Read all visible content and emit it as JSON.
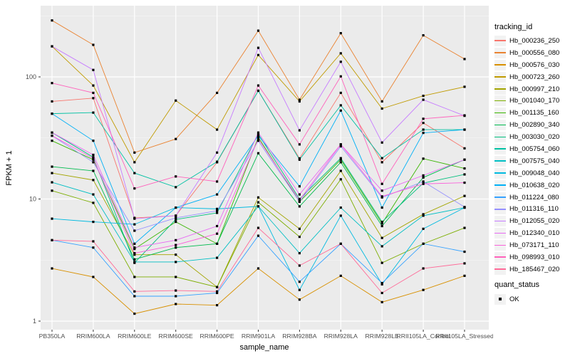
{
  "colors": {
    "panel_bg": "#EBEBEB",
    "grid_major": "#FFFFFF",
    "grid_minor": "#F7F7F7",
    "axis_text": "#4D4D4D",
    "axis_title": "#000000",
    "tick_mark": "#333333",
    "marker": "#000000",
    "legend_key_bg": "#F2F2F2"
  },
  "legend": {
    "title": "tracking_id",
    "status_title": "quant_status",
    "status_items": [
      {
        "label": "OK",
        "marker": "black-square"
      }
    ]
  },
  "chart_data": {
    "type": "line",
    "title": "",
    "xlabel": "sample_name",
    "ylabel": "FPKM + 1",
    "x_categories": [
      "PB350LA",
      "RRIM600LA",
      "RRIM600LE",
      "RRIM600SE",
      "RRIM600PE",
      "RRIM901LA",
      "RRIM928BA",
      "RRIM928LA",
      "RRIM928LE",
      "RRII105LA_Control",
      "RRII105LA_Stressed"
    ],
    "y_scale": "log10",
    "y_ticks": [
      1,
      10,
      100
    ],
    "y_tick_labels": [
      "1",
      "10",
      "100"
    ],
    "y_minor_ticks": [
      3.1623,
      31.623,
      316.23
    ],
    "ylim": [
      1,
      380
    ],
    "grid": true,
    "legend_position": "right",
    "point_marker": "filled-square",
    "series": [
      {
        "name": "Hb_000236_250",
        "color": "#F8766D",
        "values": [
          63,
          67,
          7.0,
          7.3,
          20,
          77,
          21.5,
          74,
          20,
          42,
          26
        ]
      },
      {
        "name": "Hb_000556_080",
        "color": "#EA8331",
        "values": [
          290,
          183,
          24,
          31,
          74,
          239,
          65,
          228,
          63,
          219,
          140
        ]
      },
      {
        "name": "Hb_000576_030",
        "color": "#D89000",
        "values": [
          2.7,
          2.3,
          1.15,
          1.38,
          1.35,
          2.7,
          1.5,
          2.35,
          1.43,
          1.8,
          2.35
        ]
      },
      {
        "name": "Hb_000723_260",
        "color": "#C09B00",
        "values": [
          178,
          85,
          20,
          64,
          37,
          151,
          63,
          156,
          55,
          70,
          83
        ]
      },
      {
        "name": "Hb_000997_210",
        "color": "#A3A500",
        "values": [
          16.3,
          14.3,
          3.5,
          3.5,
          1.9,
          10.3,
          5.7,
          17,
          4.8,
          7.5,
          10.6
        ]
      },
      {
        "name": "Hb_001040_170",
        "color": "#7CAE00",
        "values": [
          11.7,
          9.3,
          2.3,
          2.3,
          1.9,
          9.4,
          4.9,
          14.5,
          3.0,
          4.3,
          5.8
        ]
      },
      {
        "name": "Hb_001135_160",
        "color": "#39B600",
        "values": [
          30,
          21,
          3.9,
          6.5,
          4.3,
          32,
          9.5,
          21,
          6.3,
          21.4,
          17.8
        ]
      },
      {
        "name": "Hb_002890_340",
        "color": "#00BB4E",
        "values": [
          18.4,
          17,
          3.2,
          4.0,
          4.3,
          23.7,
          8.7,
          20,
          6.0,
          15,
          21
        ]
      },
      {
        "name": "Hb_003030_020",
        "color": "#00BF7D",
        "values": [
          35,
          22,
          3.0,
          6.8,
          7.7,
          34,
          10,
          21.6,
          6.5,
          13.5,
          15.9
        ]
      },
      {
        "name": "Hb_005754_060",
        "color": "#00C1A3",
        "values": [
          50,
          51,
          16.3,
          12.5,
          20.2,
          77,
          21,
          58.5,
          21.6,
          37,
          37
        ]
      },
      {
        "name": "Hb_007575_040",
        "color": "#00BFC4",
        "values": [
          13.7,
          10.9,
          3.05,
          3.05,
          3.3,
          8.7,
          3.6,
          8.5,
          4.1,
          7.3,
          8.5
        ]
      },
      {
        "name": "Hb_009048_040",
        "color": "#00BAE0",
        "values": [
          6.9,
          6.5,
          6.2,
          8.5,
          8.3,
          8.7,
          1.8,
          7.3,
          2.0,
          5.7,
          8.5
        ]
      },
      {
        "name": "Hb_010638_020",
        "color": "#00B0F6",
        "values": [
          50,
          30,
          4.3,
          8.5,
          10.9,
          33,
          12.7,
          53,
          8.5,
          34.8,
          37
        ]
      },
      {
        "name": "Hb_011224_080",
        "color": "#35A2FF",
        "values": [
          4.6,
          4.0,
          1.6,
          1.6,
          1.7,
          5.0,
          2.1,
          4.3,
          2.05,
          4.3,
          3.7
        ]
      },
      {
        "name": "Hb_011316_110",
        "color": "#9590FF",
        "values": [
          33,
          20,
          5.5,
          7.0,
          8.0,
          30,
          9.5,
          27,
          10.3,
          13.9,
          8.6
        ]
      },
      {
        "name": "Hb_012055_020",
        "color": "#C77CFF",
        "values": [
          178,
          114,
          6.9,
          7.3,
          24,
          173,
          36.5,
          133,
          29,
          65,
          48
        ]
      },
      {
        "name": "Hb_012340_010",
        "color": "#E76BF3",
        "values": [
          35,
          23,
          4.0,
          4.6,
          6.0,
          35,
          10.9,
          28,
          11.7,
          15.6,
          21
        ]
      },
      {
        "name": "Hb_073171_110",
        "color": "#FA62DB",
        "values": [
          33,
          21.5,
          3.6,
          4.2,
          5.2,
          31,
          9.8,
          28,
          10.5,
          13.3,
          13.6
        ]
      },
      {
        "name": "Hb_098993_010",
        "color": "#FF62BC",
        "values": [
          89,
          74,
          12.2,
          15.3,
          13.9,
          85,
          28,
          101,
          13.3,
          45.4,
          48.4
        ]
      },
      {
        "name": "Hb_185467_020",
        "color": "#FF6A98",
        "values": [
          4.6,
          4.5,
          1.75,
          1.78,
          1.75,
          5.8,
          2.85,
          4.3,
          1.7,
          2.7,
          2.97
        ]
      }
    ]
  }
}
